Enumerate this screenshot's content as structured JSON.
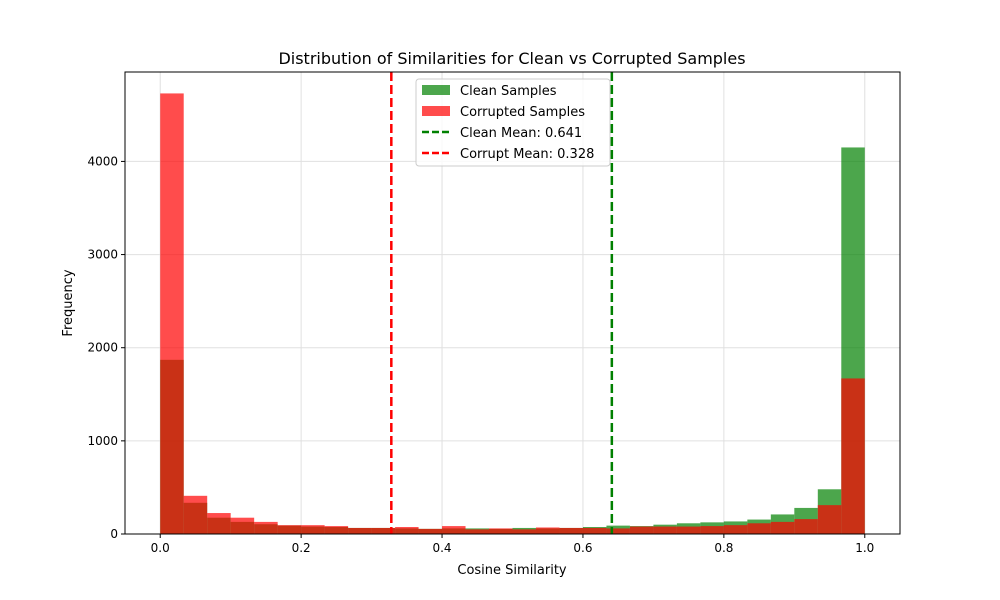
{
  "chart_data": {
    "type": "bar",
    "title": "Distribution of Similarities for Clean vs Corrupted Samples",
    "xlabel": "Cosine Similarity",
    "ylabel": "Frequency",
    "xlim": [
      -0.05,
      1.05
    ],
    "ylim": [
      0,
      4960
    ],
    "xticks": [
      "0.0",
      "0.2",
      "0.4",
      "0.6",
      "0.8",
      "1.0"
    ],
    "yticks": [
      "0",
      "1000",
      "2000",
      "3000",
      "4000"
    ],
    "grid": true,
    "legend_position": "top-center",
    "bins": 30,
    "bin_range": [
      0,
      1
    ],
    "series": [
      {
        "name": "Clean Samples",
        "color": "#008000",
        "alpha": 0.7,
        "values": [
          1870,
          335,
          175,
          130,
          105,
          90,
          80,
          75,
          65,
          65,
          60,
          55,
          60,
          60,
          55,
          65,
          60,
          65,
          75,
          90,
          85,
          100,
          115,
          125,
          135,
          155,
          210,
          280,
          480,
          4150
        ]
      },
      {
        "name": "Corrupted Samples",
        "color": "#ff0000",
        "alpha": 0.7,
        "values": [
          4730,
          410,
          225,
          175,
          130,
          95,
          95,
          85,
          65,
          65,
          75,
          55,
          85,
          50,
          60,
          50,
          70,
          65,
          65,
          60,
          80,
          80,
          80,
          85,
          95,
          115,
          130,
          160,
          310,
          1670
        ]
      }
    ],
    "lines": [
      {
        "name": "Clean Mean: 0.641",
        "x": 0.641,
        "color": "#008000"
      },
      {
        "name": "Corrupt Mean: 0.328",
        "x": 0.328,
        "color": "#ff0000"
      }
    ]
  }
}
